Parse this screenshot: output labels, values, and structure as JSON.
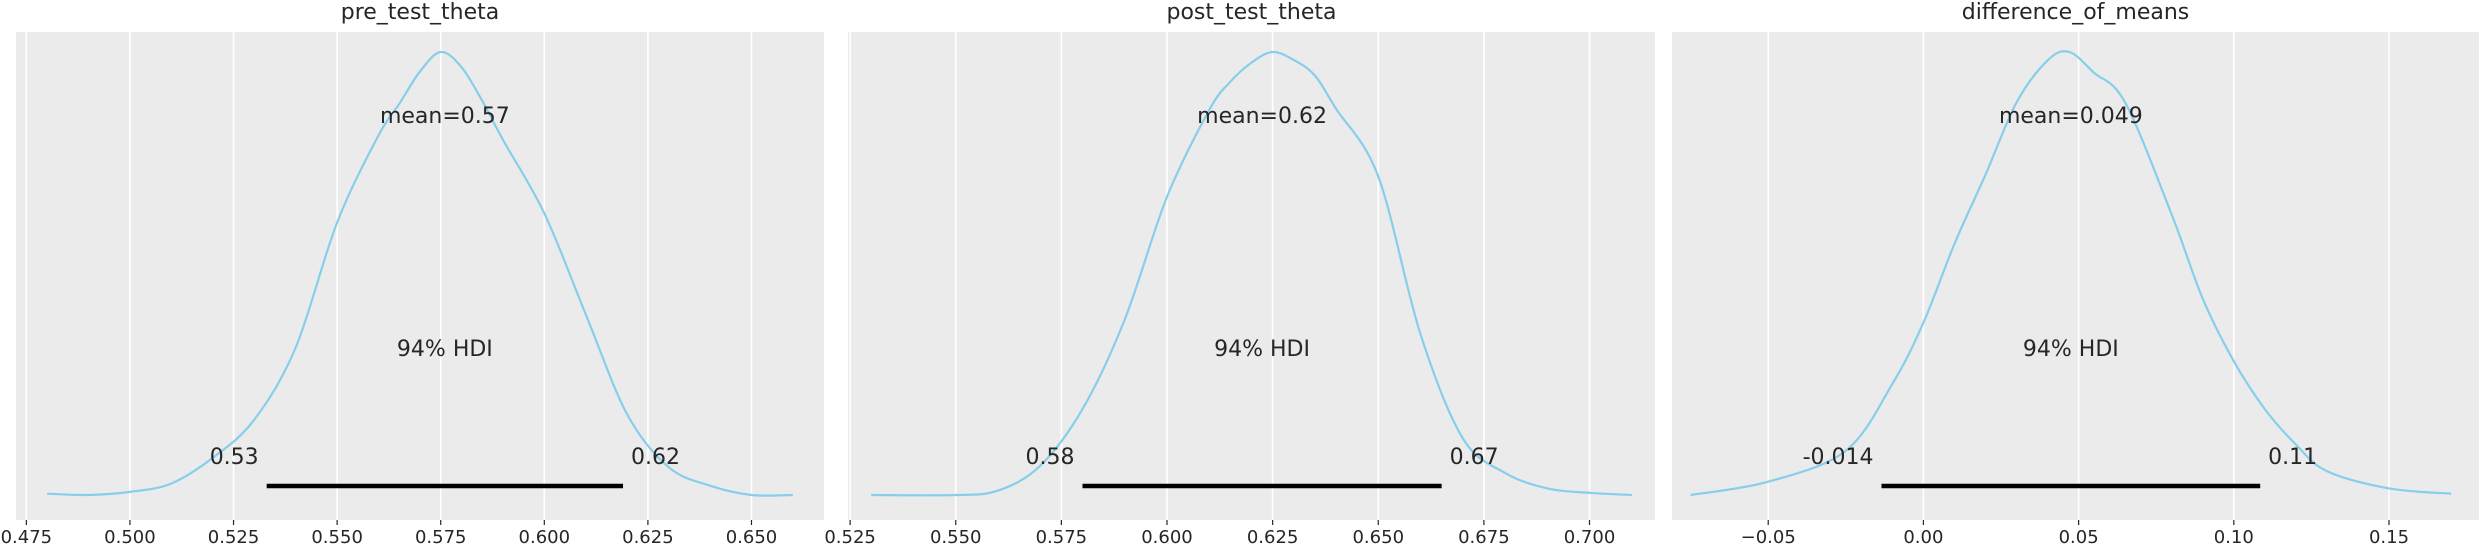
{
  "chart_data": [
    {
      "type": "area",
      "title": "pre_test_theta",
      "xlim": [
        0.4725,
        0.6675
      ],
      "x_ticks": [
        "0.475",
        "0.500",
        "0.525",
        "0.550",
        "0.575",
        "0.600",
        "0.625",
        "0.650"
      ],
      "x_tick_values": [
        0.475,
        0.5,
        0.525,
        0.55,
        0.575,
        0.6,
        0.625,
        0.65
      ],
      "grid": true,
      "density": {
        "x": [
          0.48,
          0.49,
          0.5,
          0.51,
          0.52,
          0.53,
          0.54,
          0.55,
          0.56,
          0.565,
          0.57,
          0.575,
          0.58,
          0.585,
          0.59,
          0.6,
          0.61,
          0.62,
          0.63,
          0.64,
          0.65,
          0.66
        ],
        "y": [
          0.003,
          0.0,
          0.007,
          0.026,
          0.084,
          0.17,
          0.333,
          0.615,
          0.812,
          0.883,
          0.956,
          1.0,
          0.966,
          0.89,
          0.802,
          0.636,
          0.408,
          0.182,
          0.063,
          0.021,
          0.0,
          0.0
        ]
      },
      "mean_label": "mean=0.57",
      "hdi_label": "94% HDI",
      "hdi": [
        0.533,
        0.619
      ],
      "hdi_labels": [
        "0.53",
        "0.62"
      ],
      "line_color": "#87ceeb"
    },
    {
      "type": "area",
      "title": "post_test_theta",
      "xlim": [
        0.5245,
        0.7155
      ],
      "x_ticks": [
        "0.525",
        "0.550",
        "0.575",
        "0.600",
        "0.625",
        "0.650",
        "0.675",
        "0.700"
      ],
      "x_tick_values": [
        0.525,
        0.55,
        0.575,
        0.6,
        0.625,
        0.65,
        0.675,
        0.7
      ],
      "grid": true,
      "density": {
        "x": [
          0.53,
          0.55,
          0.56,
          0.57,
          0.58,
          0.59,
          0.6,
          0.61,
          0.615,
          0.62,
          0.625,
          0.63,
          0.635,
          0.64,
          0.65,
          0.66,
          0.67,
          0.68,
          0.69,
          0.7,
          0.71
        ],
        "y": [
          0.0,
          0.0,
          0.01,
          0.066,
          0.194,
          0.396,
          0.673,
          0.869,
          0.933,
          0.976,
          1.0,
          0.982,
          0.947,
          0.872,
          0.719,
          0.363,
          0.128,
          0.05,
          0.015,
          0.005,
          0.0
        ]
      },
      "mean_label": "mean=0.62",
      "hdi_label": "94% HDI",
      "hdi": [
        0.58,
        0.665
      ],
      "hdi_labels": [
        "0.58",
        "0.67"
      ],
      "line_color": "#87ceeb"
    },
    {
      "type": "area",
      "title": "difference_of_means",
      "xlim": [
        -0.081,
        0.179
      ],
      "x_ticks": [
        "−0.05",
        "0.00",
        "0.05",
        "0.10",
        "0.15"
      ],
      "x_tick_values": [
        -0.05,
        0.0,
        0.05,
        0.1,
        0.15
      ],
      "grid": true,
      "density": {
        "x": [
          -0.075,
          -0.05,
          -0.025,
          -0.01,
          0.0,
          0.01,
          0.02,
          0.03,
          0.04,
          0.047,
          0.055,
          0.065,
          0.08,
          0.09,
          0.1,
          0.11,
          0.12,
          0.13,
          0.15,
          0.17
        ],
        "y": [
          0.0,
          0.03,
          0.1,
          0.251,
          0.389,
          0.567,
          0.723,
          0.886,
          0.981,
          1.0,
          0.953,
          0.886,
          0.633,
          0.443,
          0.302,
          0.194,
          0.114,
          0.054,
          0.015,
          0.003
        ]
      },
      "mean_label": "mean=0.049",
      "hdi_label": "94% HDI",
      "hdi": [
        -0.0135,
        0.1085
      ],
      "hdi_labels": [
        "-0.014",
        "0.11"
      ],
      "line_color": "#87ceeb"
    }
  ],
  "style": {
    "panel_bg": "#ebebeb",
    "grid_color": "#ffffff",
    "text_color": "#262626",
    "hdi_color": "#000000"
  }
}
